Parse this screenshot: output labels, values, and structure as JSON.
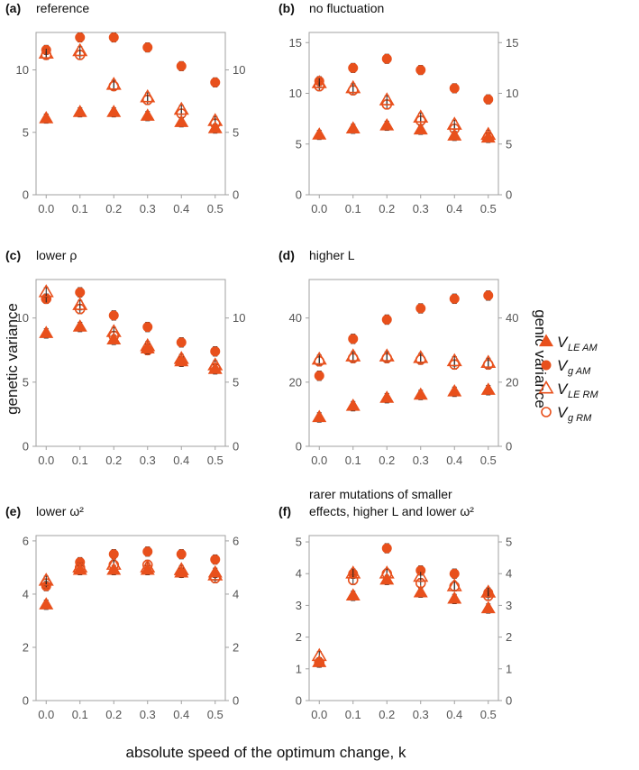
{
  "colors": {
    "accent": "#e8501c",
    "frame": "#a0a0a0",
    "tick": "#555555",
    "errorbar": "#222222"
  },
  "chart_data": {
    "type": "scatter",
    "x_label": "absolute speed of the optimum change,  k",
    "y_label_left": "genetic variance",
    "y_label_right": "genic variance",
    "legend": [
      {
        "key": "VLE_AM",
        "main": "V",
        "sub": "LE AM",
        "marker": "filled-triangle"
      },
      {
        "key": "Vg_AM",
        "main": "V",
        "sub": "g AM",
        "marker": "filled-circle"
      },
      {
        "key": "VLE_RM",
        "main": "V",
        "sub": "LE RM",
        "marker": "open-triangle"
      },
      {
        "key": "Vg_RM",
        "main": "V",
        "sub": "g RM",
        "marker": "open-circle"
      }
    ],
    "x_ticks": [
      "0.0",
      "0.1",
      "0.2",
      "0.3",
      "0.4",
      "0.5"
    ],
    "x_values": [
      0.0,
      0.1,
      0.2,
      0.3,
      0.4,
      0.5
    ],
    "panels": [
      {
        "letter": "(a)",
        "title_lines": [
          "reference"
        ],
        "ylim": [
          0,
          13
        ],
        "yticks": [
          0,
          5,
          10
        ],
        "series": {
          "VLE_AM": [
            6.1,
            6.6,
            6.6,
            6.3,
            5.8,
            5.3
          ],
          "Vg_AM": [
            11.6,
            12.6,
            12.6,
            11.8,
            10.3,
            9.0
          ],
          "VLE_RM": [
            11.3,
            11.5,
            8.8,
            7.8,
            6.8,
            5.9
          ],
          "Vg_RM": [
            11.2,
            11.2,
            8.7,
            7.6,
            6.5,
            5.7
          ]
        }
      },
      {
        "letter": "(b)",
        "title_lines": [
          "no fluctuation"
        ],
        "ylim": [
          0,
          16
        ],
        "yticks": [
          0,
          5,
          10,
          15
        ],
        "series": {
          "VLE_AM": [
            5.9,
            6.5,
            6.8,
            6.4,
            5.8,
            5.6
          ],
          "Vg_AM": [
            11.2,
            12.5,
            13.4,
            12.3,
            10.5,
            9.4
          ],
          "VLE_RM": [
            11.0,
            10.5,
            9.3,
            7.6,
            6.9,
            5.9
          ],
          "Vg_RM": [
            10.7,
            10.3,
            8.9,
            7.3,
            6.5,
            5.7
          ]
        }
      },
      {
        "letter": "(c)",
        "title_lines": [
          "lower ρ"
        ],
        "ylim": [
          0,
          13
        ],
        "yticks": [
          0,
          5,
          10
        ],
        "series": {
          "VLE_AM": [
            8.8,
            9.3,
            8.3,
            7.6,
            6.6,
            6.0
          ],
          "Vg_AM": [
            11.5,
            12.0,
            10.2,
            9.3,
            8.1,
            7.4
          ],
          "VLE_RM": [
            12.0,
            11.0,
            8.9,
            7.8,
            6.8,
            6.3
          ],
          "Vg_RM": [
            11.5,
            10.7,
            8.6,
            7.5,
            6.6,
            6.1
          ]
        }
      },
      {
        "letter": "(d)",
        "title_lines": [
          "higher L"
        ],
        "ylim": [
          0,
          52
        ],
        "yticks": [
          0,
          20,
          40
        ],
        "series": {
          "VLE_AM": [
            9.0,
            12.5,
            15.0,
            16.0,
            17.0,
            17.5
          ],
          "Vg_AM": [
            22.0,
            33.5,
            39.5,
            43.0,
            46.0,
            47.0
          ],
          "VLE_RM": [
            27.0,
            28.0,
            28.0,
            27.5,
            26.5,
            26.0
          ],
          "Vg_RM": [
            26.5,
            27.5,
            27.5,
            27.0,
            25.5,
            25.5
          ]
        }
      },
      {
        "letter": "(e)",
        "title_lines": [
          "lower ω²"
        ],
        "ylim": [
          0,
          6.2
        ],
        "yticks": [
          0,
          2,
          4,
          6
        ],
        "series": {
          "VLE_AM": [
            3.6,
            4.9,
            4.9,
            4.9,
            4.8,
            4.8
          ],
          "Vg_AM": [
            4.3,
            5.2,
            5.5,
            5.6,
            5.5,
            5.3
          ],
          "VLE_RM": [
            4.5,
            5.0,
            5.1,
            5.0,
            4.9,
            4.7
          ],
          "Vg_RM": [
            4.4,
            5.0,
            5.1,
            5.1,
            4.8,
            4.6
          ]
        }
      },
      {
        "letter": "(f)",
        "title_lines": [
          "rarer mutations of smaller",
          "effects, higher L and lower ω²"
        ],
        "ylim": [
          0,
          5.2
        ],
        "yticks": [
          0,
          1,
          2,
          3,
          4,
          5
        ],
        "series": {
          "VLE_AM": [
            1.2,
            3.3,
            3.8,
            3.4,
            3.2,
            2.9
          ],
          "Vg_AM": [
            1.2,
            4.0,
            4.8,
            4.1,
            4.0,
            3.4
          ],
          "VLE_RM": [
            1.4,
            4.0,
            4.0,
            3.9,
            3.6,
            3.4
          ],
          "Vg_RM": [
            1.2,
            3.8,
            4.0,
            3.7,
            3.6,
            3.3
          ]
        }
      }
    ]
  }
}
